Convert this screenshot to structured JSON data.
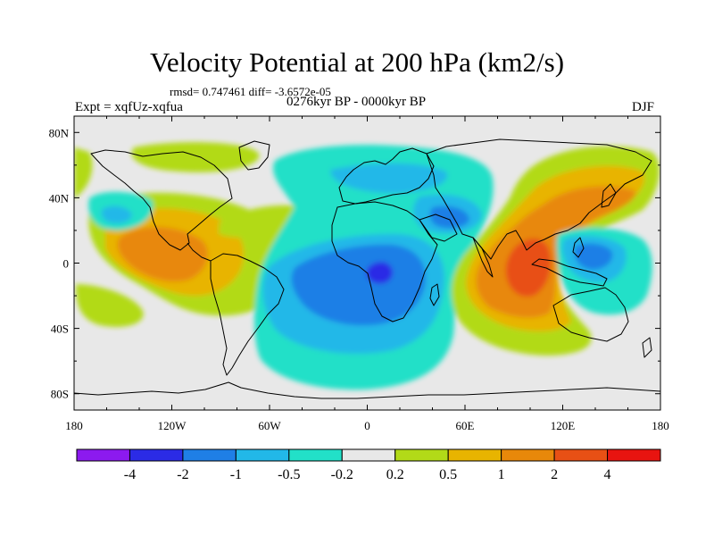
{
  "title": "Velocity Potential at 200 hPa (km2/s)",
  "stats": "rmsd= 0.747461 diff= -3.6572e-05",
  "experiment": "Expt = xqfUz-xqfua",
  "period": "0276kyr BP - 0000kyr BP",
  "season": "DJF",
  "map_axes": {
    "lon_ticks": [
      "180",
      "120W",
      "60W",
      "0",
      "60E",
      "120E",
      "180"
    ],
    "lat_ticks": [
      "80N",
      "40N",
      "0",
      "40S",
      "80S"
    ],
    "lon_range": [
      -180,
      180
    ],
    "lat_range": [
      -90,
      90
    ]
  },
  "colorbar": {
    "colors": [
      "#8c1aef",
      "#2b2be6",
      "#1f7fe6",
      "#22b8e8",
      "#22e0c8",
      "#e8e8e8",
      "#b2da18",
      "#e8b400",
      "#e8880a",
      "#e85015",
      "#e81410"
    ],
    "labels": [
      "-4",
      "-2",
      "-1",
      "-0.5",
      "-0.2",
      "0.2",
      "0.5",
      "1",
      "2",
      "4"
    ]
  },
  "colors": {
    "background": "#e8e8e8",
    "coastline": "#000000"
  }
}
